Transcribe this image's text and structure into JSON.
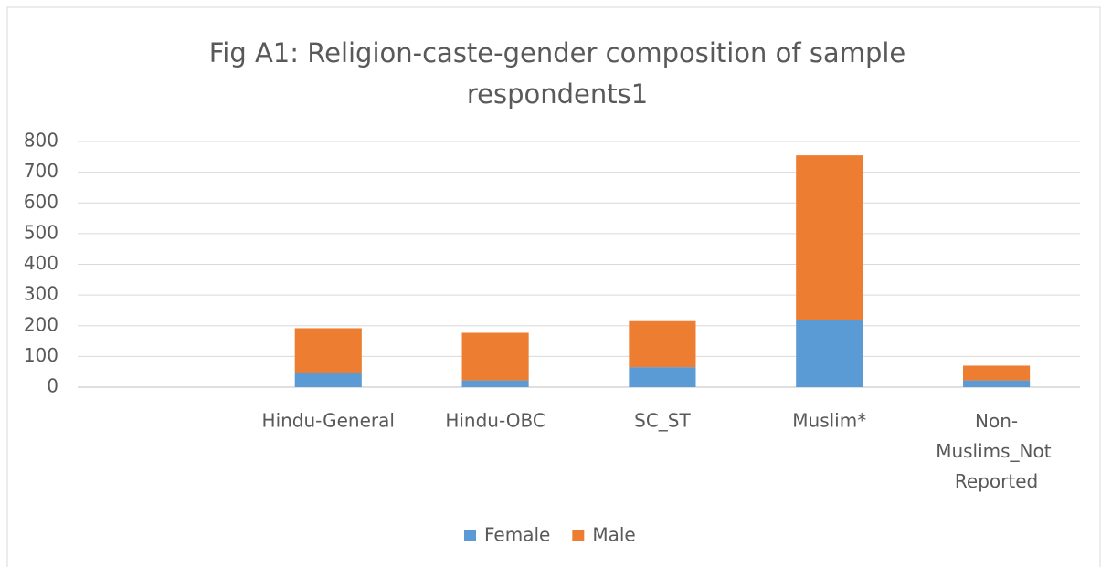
{
  "chart_data": {
    "type": "stacked_bar",
    "title": "Fig A1: Religion-caste-gender composition of sample respondents1",
    "categories": [
      null,
      "Hindu-General",
      "Hindu-OBC",
      "SC_ST",
      "Muslim*",
      "Non-Muslims_Not Reported"
    ],
    "series": [
      {
        "name": "Female",
        "color": "#5b9bd5",
        "values": [
          null,
          47,
          22,
          65,
          218,
          22
        ]
      },
      {
        "name": "Male",
        "color": "#ed7d31",
        "values": [
          null,
          145,
          155,
          150,
          537,
          48
        ]
      }
    ],
    "ylim": [
      0,
      800
    ],
    "yticks": [
      0,
      100,
      200,
      300,
      400,
      500,
      600,
      700,
      800
    ],
    "grid": true,
    "legend": "bottom"
  }
}
